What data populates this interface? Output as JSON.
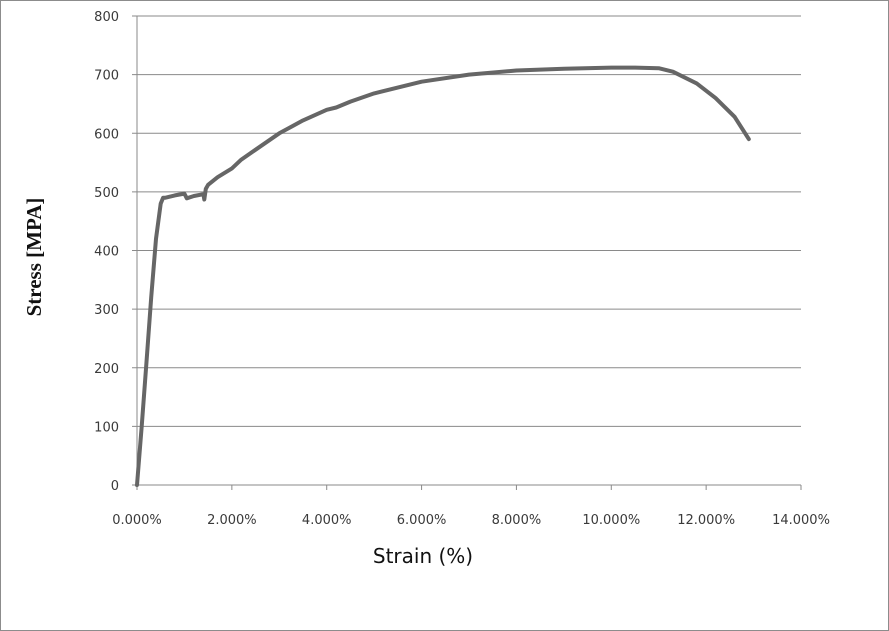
{
  "chart_data": {
    "type": "line",
    "title": "",
    "xlabel": "Strain (%)",
    "ylabel": "Stress [MPA]",
    "xlim": [
      0,
      14
    ],
    "ylim": [
      0,
      800
    ],
    "x_ticks": [
      0,
      2,
      4,
      6,
      8,
      10,
      12,
      14
    ],
    "x_tick_labels": [
      "0.000%",
      "2.000%",
      "4.000%",
      "6.000%",
      "8.000%",
      "10.000%",
      "12.000%",
      "14.000%"
    ],
    "y_ticks": [
      0,
      100,
      200,
      300,
      400,
      500,
      600,
      700,
      800
    ],
    "y_tick_labels": [
      "0",
      "100",
      "200",
      "300",
      "400",
      "500",
      "600",
      "700",
      "800"
    ],
    "grid": "horizontal",
    "legend": "none",
    "line_color": "#666666",
    "series": [
      {
        "x": [
          0,
          0.1,
          0.2,
          0.3,
          0.4,
          0.5,
          0.55,
          0.6,
          0.8,
          1.0,
          1.05,
          1.2,
          1.4,
          1.42,
          1.45,
          1.5,
          1.7,
          2.0,
          2.2,
          2.5,
          3.0,
          3.5,
          4.0,
          4.2,
          4.5,
          5.0,
          6.0,
          7.0,
          8.0,
          9.0,
          10.0,
          10.5,
          11.0,
          11.3,
          11.8,
          12.2,
          12.6,
          12.9
        ],
        "y": [
          0,
          100,
          210,
          320,
          420,
          480,
          490,
          490,
          494,
          497,
          489,
          493,
          496,
          487,
          505,
          512,
          525,
          540,
          555,
          572,
          600,
          622,
          640,
          644,
          654,
          668,
          688,
          700,
          707,
          710,
          712,
          712,
          711,
          705,
          685,
          660,
          628,
          590
        ]
      }
    ]
  }
}
